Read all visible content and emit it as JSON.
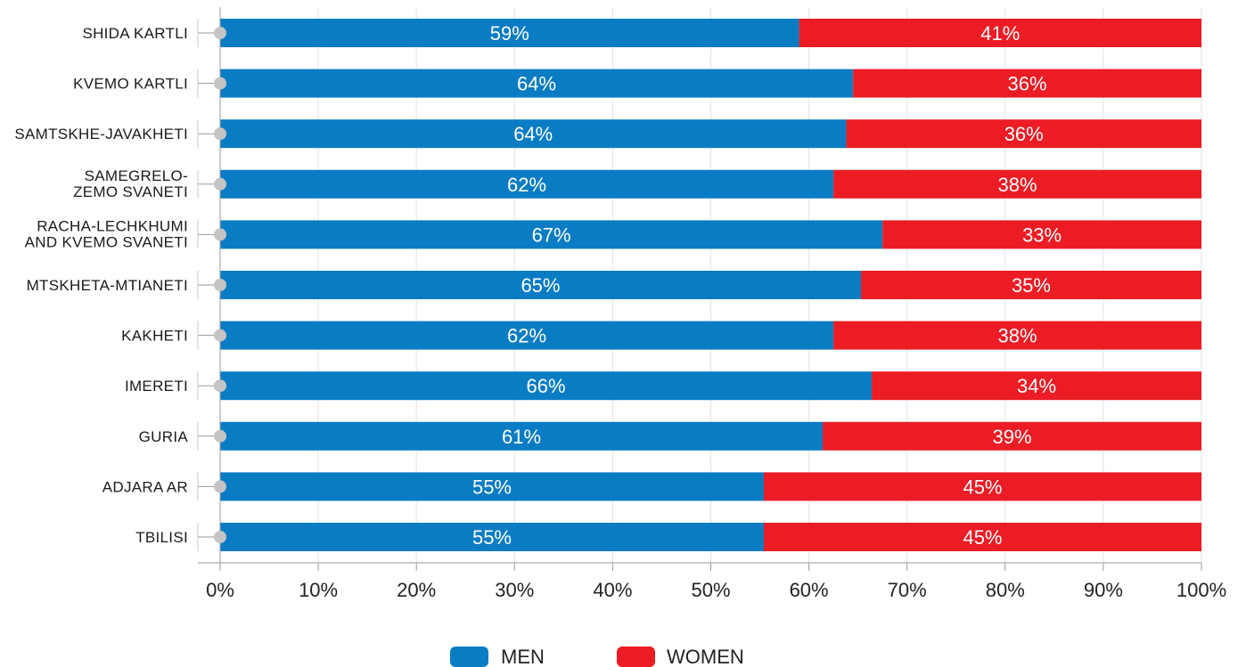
{
  "chart_data": {
    "type": "bar",
    "orientation": "horizontal",
    "stacked": true,
    "categories": [
      [
        "SHIDA KARTLI"
      ],
      [
        "KVEMO KARTLI"
      ],
      [
        "SAMTSKHE-JAVAKHETI"
      ],
      [
        "SAMEGRELO-",
        "ZEMO SVANETI"
      ],
      [
        "RACHA-LECHKHUMI",
        "AND KVEMO SVANETI"
      ],
      [
        "MTSKHETA-MTIANETI"
      ],
      [
        "KAKHETI"
      ],
      [
        "IMERETI"
      ],
      [
        "GURIA"
      ],
      [
        "ADJARA AR"
      ],
      [
        "TBILISI"
      ]
    ],
    "series": [
      {
        "name": "MEN",
        "color": "#0a7cc4",
        "values": [
          59,
          64.5,
          63.8,
          62.5,
          67.5,
          65.3,
          62.5,
          66.4,
          61.4,
          55.4,
          55.4
        ],
        "labels": [
          "59%",
          "64%",
          "64%",
          "62%",
          "67%",
          "65%",
          "62%",
          "66%",
          "61%",
          "55%",
          "55%"
        ]
      },
      {
        "name": "WOMEN",
        "color": "#ec1c24",
        "values": [
          41,
          35.5,
          36.2,
          37.5,
          32.5,
          34.7,
          37.5,
          33.6,
          38.6,
          44.6,
          44.6
        ],
        "labels": [
          "41%",
          "36%",
          "36%",
          "38%",
          "33%",
          "35%",
          "38%",
          "34%",
          "39%",
          "45%",
          "45%"
        ]
      }
    ],
    "xlim": [
      0,
      100
    ],
    "x_ticks": [
      "0%",
      "10%",
      "20%",
      "30%",
      "40%",
      "50%",
      "60%",
      "70%",
      "80%",
      "90%",
      "100%"
    ],
    "grid": true,
    "legend": "bottom-center",
    "title": "",
    "xlabel": "",
    "ylabel": ""
  }
}
